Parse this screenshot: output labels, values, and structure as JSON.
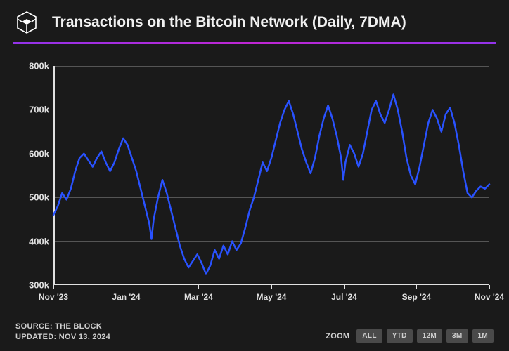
{
  "header": {
    "title": "Transactions on the Bitcoin Network (Daily, 7DMA)"
  },
  "chart": {
    "type": "line",
    "background_color": "#1a1a1a",
    "grid_color": "#555555",
    "axis_color": "#e0e0e0",
    "line_color": "#2952ff",
    "line_width": 2.5,
    "title_fontsize": 21,
    "label_fontsize": 13,
    "ylim": [
      300000,
      800000
    ],
    "ytick_step": 100000,
    "ytick_labels": [
      "300k",
      "400k",
      "500k",
      "600k",
      "700k",
      "800k"
    ],
    "ytick_values": [
      300000,
      400000,
      500000,
      600000,
      700000,
      800000
    ],
    "xtick_labels": [
      "Nov '23",
      "Jan '24",
      "Mar '24",
      "May '24",
      "Jul '24",
      "Sep '24",
      "Nov '24"
    ],
    "xtick_positions": [
      0,
      0.167,
      0.333,
      0.5,
      0.667,
      0.833,
      1.0
    ],
    "series": [
      {
        "x": 0.0,
        "y": 460000
      },
      {
        "x": 0.01,
        "y": 480000
      },
      {
        "x": 0.02,
        "y": 510000
      },
      {
        "x": 0.03,
        "y": 495000
      },
      {
        "x": 0.04,
        "y": 520000
      },
      {
        "x": 0.05,
        "y": 560000
      },
      {
        "x": 0.06,
        "y": 590000
      },
      {
        "x": 0.07,
        "y": 600000
      },
      {
        "x": 0.08,
        "y": 585000
      },
      {
        "x": 0.09,
        "y": 570000
      },
      {
        "x": 0.1,
        "y": 590000
      },
      {
        "x": 0.11,
        "y": 605000
      },
      {
        "x": 0.12,
        "y": 580000
      },
      {
        "x": 0.13,
        "y": 560000
      },
      {
        "x": 0.14,
        "y": 580000
      },
      {
        "x": 0.15,
        "y": 610000
      },
      {
        "x": 0.16,
        "y": 635000
      },
      {
        "x": 0.17,
        "y": 620000
      },
      {
        "x": 0.18,
        "y": 590000
      },
      {
        "x": 0.19,
        "y": 560000
      },
      {
        "x": 0.2,
        "y": 520000
      },
      {
        "x": 0.21,
        "y": 480000
      },
      {
        "x": 0.22,
        "y": 440000
      },
      {
        "x": 0.225,
        "y": 405000
      },
      {
        "x": 0.23,
        "y": 450000
      },
      {
        "x": 0.24,
        "y": 500000
      },
      {
        "x": 0.25,
        "y": 540000
      },
      {
        "x": 0.26,
        "y": 510000
      },
      {
        "x": 0.27,
        "y": 470000
      },
      {
        "x": 0.28,
        "y": 430000
      },
      {
        "x": 0.29,
        "y": 390000
      },
      {
        "x": 0.3,
        "y": 360000
      },
      {
        "x": 0.31,
        "y": 340000
      },
      {
        "x": 0.32,
        "y": 355000
      },
      {
        "x": 0.33,
        "y": 370000
      },
      {
        "x": 0.34,
        "y": 350000
      },
      {
        "x": 0.35,
        "y": 325000
      },
      {
        "x": 0.36,
        "y": 345000
      },
      {
        "x": 0.37,
        "y": 380000
      },
      {
        "x": 0.38,
        "y": 360000
      },
      {
        "x": 0.39,
        "y": 390000
      },
      {
        "x": 0.4,
        "y": 370000
      },
      {
        "x": 0.41,
        "y": 400000
      },
      {
        "x": 0.42,
        "y": 380000
      },
      {
        "x": 0.43,
        "y": 395000
      },
      {
        "x": 0.44,
        "y": 430000
      },
      {
        "x": 0.45,
        "y": 470000
      },
      {
        "x": 0.46,
        "y": 500000
      },
      {
        "x": 0.47,
        "y": 540000
      },
      {
        "x": 0.48,
        "y": 580000
      },
      {
        "x": 0.49,
        "y": 560000
      },
      {
        "x": 0.5,
        "y": 590000
      },
      {
        "x": 0.51,
        "y": 630000
      },
      {
        "x": 0.52,
        "y": 670000
      },
      {
        "x": 0.53,
        "y": 700000
      },
      {
        "x": 0.54,
        "y": 720000
      },
      {
        "x": 0.55,
        "y": 690000
      },
      {
        "x": 0.56,
        "y": 650000
      },
      {
        "x": 0.57,
        "y": 610000
      },
      {
        "x": 0.58,
        "y": 580000
      },
      {
        "x": 0.59,
        "y": 555000
      },
      {
        "x": 0.6,
        "y": 590000
      },
      {
        "x": 0.61,
        "y": 640000
      },
      {
        "x": 0.62,
        "y": 680000
      },
      {
        "x": 0.63,
        "y": 710000
      },
      {
        "x": 0.64,
        "y": 680000
      },
      {
        "x": 0.65,
        "y": 640000
      },
      {
        "x": 0.66,
        "y": 590000
      },
      {
        "x": 0.665,
        "y": 540000
      },
      {
        "x": 0.67,
        "y": 580000
      },
      {
        "x": 0.68,
        "y": 620000
      },
      {
        "x": 0.69,
        "y": 600000
      },
      {
        "x": 0.7,
        "y": 570000
      },
      {
        "x": 0.71,
        "y": 600000
      },
      {
        "x": 0.72,
        "y": 650000
      },
      {
        "x": 0.73,
        "y": 700000
      },
      {
        "x": 0.74,
        "y": 720000
      },
      {
        "x": 0.75,
        "y": 690000
      },
      {
        "x": 0.76,
        "y": 670000
      },
      {
        "x": 0.77,
        "y": 700000
      },
      {
        "x": 0.78,
        "y": 735000
      },
      {
        "x": 0.79,
        "y": 700000
      },
      {
        "x": 0.8,
        "y": 650000
      },
      {
        "x": 0.81,
        "y": 590000
      },
      {
        "x": 0.82,
        "y": 550000
      },
      {
        "x": 0.83,
        "y": 530000
      },
      {
        "x": 0.84,
        "y": 570000
      },
      {
        "x": 0.85,
        "y": 620000
      },
      {
        "x": 0.86,
        "y": 670000
      },
      {
        "x": 0.87,
        "y": 700000
      },
      {
        "x": 0.88,
        "y": 680000
      },
      {
        "x": 0.89,
        "y": 650000
      },
      {
        "x": 0.9,
        "y": 690000
      },
      {
        "x": 0.91,
        "y": 705000
      },
      {
        "x": 0.92,
        "y": 670000
      },
      {
        "x": 0.93,
        "y": 620000
      },
      {
        "x": 0.94,
        "y": 560000
      },
      {
        "x": 0.95,
        "y": 510000
      },
      {
        "x": 0.96,
        "y": 500000
      },
      {
        "x": 0.97,
        "y": 515000
      },
      {
        "x": 0.98,
        "y": 525000
      },
      {
        "x": 0.99,
        "y": 520000
      },
      {
        "x": 1.0,
        "y": 530000
      }
    ]
  },
  "footer": {
    "source_label": "SOURCE: THE BLOCK",
    "updated_label": "UPDATED: NOV 13, 2024",
    "zoom_label": "ZOOM",
    "zoom_buttons": [
      "ALL",
      "YTD",
      "12M",
      "3M",
      "1M"
    ]
  },
  "colors": {
    "background": "#1a1a1a",
    "text": "#e0e0e0",
    "accent": "#9333ea",
    "line": "#2952ff",
    "button_bg": "#4a4a4a"
  }
}
